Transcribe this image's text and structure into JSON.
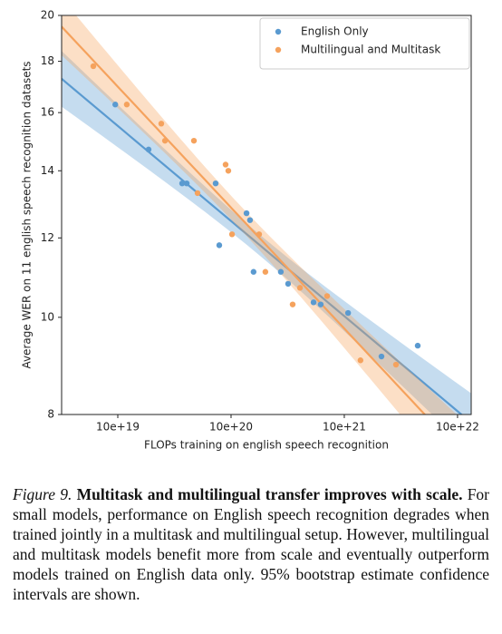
{
  "chart_data": {
    "type": "scatter",
    "xlabel": "FLOPs training on english speech recognition",
    "ylabel": "Average WER on 11 english speech recognition datasets",
    "xscale": "log",
    "yscale": "log",
    "xlim": [
      3.19e+19,
      1.32e+23
    ],
    "ylim": [
      8,
      20
    ],
    "xticks": [
      {
        "value": 1e+20,
        "label": "10e+19"
      },
      {
        "value": 1e+21,
        "label": "10e+20"
      },
      {
        "value": 1e+22,
        "label": "10e+21"
      },
      {
        "value": 1e+23,
        "label": "10e+22"
      }
    ],
    "yticks": [
      8,
      10,
      12,
      14,
      16,
      18,
      20
    ],
    "legend": "upper right",
    "series": [
      {
        "name": "English Only",
        "color": "#5a9ad0",
        "x": [
          9.5e+19,
          1.87e+20,
          3.7e+20,
          4.06e+20,
          7.31e+20,
          7.87e+20,
          1.37e+21,
          1.47e+21,
          1.58e+21,
          2.75e+21,
          3.19e+21,
          5.35e+21,
          6.19e+21,
          1.08e+22,
          2.13e+22,
          4.45e+22
        ],
        "values": [
          16.3,
          14.7,
          13.6,
          13.6,
          13.6,
          11.8,
          12.7,
          12.5,
          11.1,
          11.1,
          10.8,
          10.35,
          10.3,
          10.1,
          9.14,
          9.37
        ]
      },
      {
        "name": "Multilingual and Multitask",
        "color": "#f5a25d",
        "x": [
          6.08e+19,
          1.2e+20,
          2.42e+20,
          2.61e+20,
          4.7e+20,
          5.06e+20,
          8.95e+20,
          9.46e+20,
          1.02e+21,
          1.77e+21,
          2.01e+21,
          4.06e+21,
          3.5e+21,
          7.05e+21,
          1.39e+22,
          2.86e+22
        ],
        "values": [
          17.8,
          16.3,
          15.6,
          15.0,
          15.0,
          13.3,
          14.2,
          14.0,
          12.1,
          12.1,
          11.1,
          10.7,
          10.3,
          10.5,
          9.06,
          8.97
        ]
      }
    ]
  },
  "caption": {
    "label": "Figure 9.",
    "heading": "Multitask and multilingual transfer improves with scale.",
    "text": "For small models, performance on English speech recognition degrades when trained jointly in a multitask and multilingual setup. However, multilingual and multitask models benefit more from scale and eventually outperform models trained on English data only. 95% bootstrap estimate confidence intervals are shown."
  }
}
